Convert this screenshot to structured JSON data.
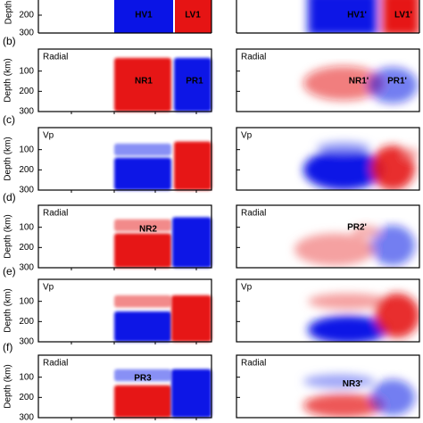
{
  "axis_label_top": "Depth",
  "axis_label": "Depth (km)",
  "top_panel": {
    "ticks": [
      200,
      300
    ],
    "left_labels": [
      "HV1",
      "LV1"
    ],
    "right_labels": [
      "HV1'",
      "LV1'"
    ]
  },
  "ticks": [
    100,
    200,
    300
  ],
  "panels": [
    {
      "label": "(b)",
      "left_title": "Radial",
      "right_title": "Radial",
      "left_labels": [
        "NR1",
        "PR1"
      ],
      "right_labels": [
        "NR1'",
        "PR1'"
      ]
    },
    {
      "label": "(c)",
      "left_title": "Vp",
      "right_title": "Vp"
    },
    {
      "label": "(d)",
      "left_title": "Radial",
      "right_title": "Radial",
      "left_labels": [
        "NR2"
      ],
      "right_labels": [
        "PR2'"
      ]
    },
    {
      "label": "(e)",
      "left_title": "Vp",
      "right_title": "Vp"
    },
    {
      "label": "(f)",
      "left_title": "Radial",
      "right_title": "Radial",
      "left_labels": [
        "PR3"
      ],
      "right_labels": [
        "NR3'"
      ]
    }
  ]
}
